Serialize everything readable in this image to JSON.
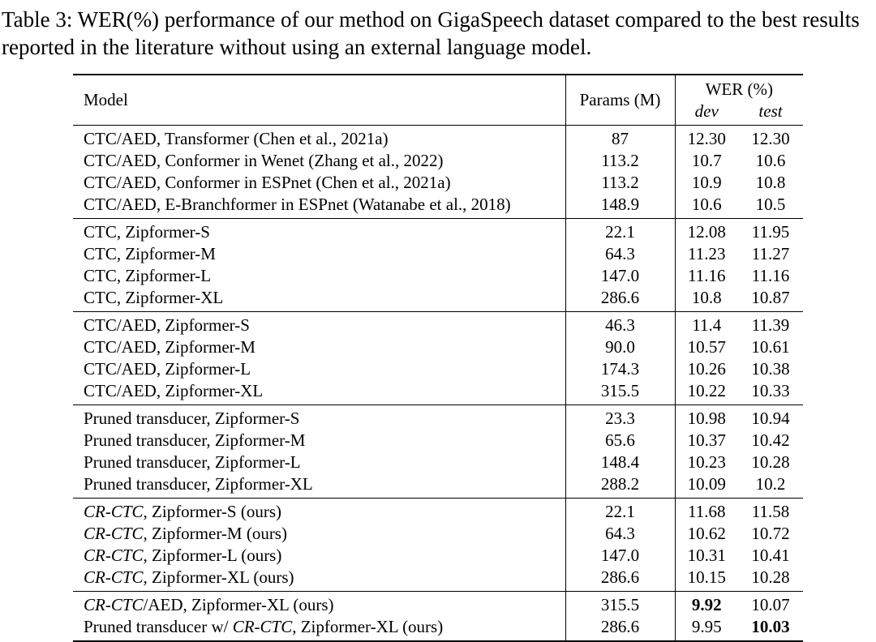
{
  "caption": "Table 3: WER(%) performance of our method on GigaSpeech dataset compared to the best results reported in the literature without using an external language model.",
  "colors": {
    "text": "#000000",
    "background": "#ffffff",
    "rule": "#000000"
  },
  "table": {
    "headers": {
      "model": "Model",
      "params": "Params (M)",
      "wer": "WER (%)",
      "dev": "dev",
      "test": "test"
    },
    "groups": [
      {
        "rows": [
          {
            "model": [
              {
                "text": "CTC/AED, Transformer (Chen et al., 2021a)"
              }
            ],
            "params": "87",
            "dev": "12.30",
            "test": "12.30"
          },
          {
            "model": [
              {
                "text": "CTC/AED, Conformer in Wenet (Zhang et al., 2022)"
              }
            ],
            "params": "113.2",
            "dev": "10.7",
            "test": "10.6"
          },
          {
            "model": [
              {
                "text": "CTC/AED, Conformer in ESPnet (Chen et al., 2021a)"
              }
            ],
            "params": "113.2",
            "dev": "10.9",
            "test": "10.8"
          },
          {
            "model": [
              {
                "text": "CTC/AED, E-Branchformer in ESPnet (Watanabe et al., 2018)"
              }
            ],
            "params": "148.9",
            "dev": "10.6",
            "test": "10.5"
          }
        ]
      },
      {
        "rows": [
          {
            "model": [
              {
                "text": "CTC, Zipformer-S"
              }
            ],
            "params": "22.1",
            "dev": "12.08",
            "test": "11.95"
          },
          {
            "model": [
              {
                "text": "CTC, Zipformer-M"
              }
            ],
            "params": "64.3",
            "dev": "11.23",
            "test": "11.27"
          },
          {
            "model": [
              {
                "text": "CTC, Zipformer-L"
              }
            ],
            "params": "147.0",
            "dev": "11.16",
            "test": "11.16"
          },
          {
            "model": [
              {
                "text": "CTC, Zipformer-XL"
              }
            ],
            "params": "286.6",
            "dev": "10.8",
            "test": "10.87"
          }
        ]
      },
      {
        "rows": [
          {
            "model": [
              {
                "text": "CTC/AED, Zipformer-S"
              }
            ],
            "params": "46.3",
            "dev": "11.4",
            "test": "11.39"
          },
          {
            "model": [
              {
                "text": "CTC/AED, Zipformer-M"
              }
            ],
            "params": "90.0",
            "dev": "10.57",
            "test": "10.61"
          },
          {
            "model": [
              {
                "text": "CTC/AED, Zipformer-L"
              }
            ],
            "params": "174.3",
            "dev": "10.26",
            "test": "10.38"
          },
          {
            "model": [
              {
                "text": "CTC/AED, Zipformer-XL"
              }
            ],
            "params": "315.5",
            "dev": "10.22",
            "test": "10.33"
          }
        ]
      },
      {
        "rows": [
          {
            "model": [
              {
                "text": "Pruned transducer, Zipformer-S"
              }
            ],
            "params": "23.3",
            "dev": "10.98",
            "test": "10.94"
          },
          {
            "model": [
              {
                "text": "Pruned transducer, Zipformer-M"
              }
            ],
            "params": "65.6",
            "dev": "10.37",
            "test": "10.42"
          },
          {
            "model": [
              {
                "text": "Pruned transducer, Zipformer-L"
              }
            ],
            "params": "148.4",
            "dev": "10.23",
            "test": "10.28"
          },
          {
            "model": [
              {
                "text": "Pruned transducer, Zipformer-XL"
              }
            ],
            "params": "288.2",
            "dev": "10.09",
            "test": "10.2"
          }
        ]
      },
      {
        "rows": [
          {
            "model": [
              {
                "text": "CR-CTC",
                "italic": true
              },
              {
                "text": ", Zipformer-S (ours)"
              }
            ],
            "params": "22.1",
            "dev": "11.68",
            "test": "11.58"
          },
          {
            "model": [
              {
                "text": "CR-CTC",
                "italic": true
              },
              {
                "text": ", Zipformer-M (ours)"
              }
            ],
            "params": "64.3",
            "dev": "10.62",
            "test": "10.72"
          },
          {
            "model": [
              {
                "text": "CR-CTC",
                "italic": true
              },
              {
                "text": ", Zipformer-L (ours)"
              }
            ],
            "params": "147.0",
            "dev": "10.31",
            "test": "10.41"
          },
          {
            "model": [
              {
                "text": "CR-CTC",
                "italic": true
              },
              {
                "text": ", Zipformer-XL (ours)"
              }
            ],
            "params": "286.6",
            "dev": "10.15",
            "test": "10.28"
          }
        ]
      },
      {
        "rows": [
          {
            "model": [
              {
                "text": "CR-CTC",
                "italic": true
              },
              {
                "text": "/AED, Zipformer-XL (ours)"
              }
            ],
            "params": "315.5",
            "dev": "9.92",
            "test": "10.07",
            "bold": [
              "dev"
            ]
          },
          {
            "model": [
              {
                "text": "Pruned transducer w/ "
              },
              {
                "text": "CR-CTC",
                "italic": true
              },
              {
                "text": ", Zipformer-XL (ours)"
              }
            ],
            "params": "286.6",
            "dev": "9.95",
            "test": "10.03",
            "bold": [
              "test"
            ]
          }
        ]
      }
    ]
  }
}
